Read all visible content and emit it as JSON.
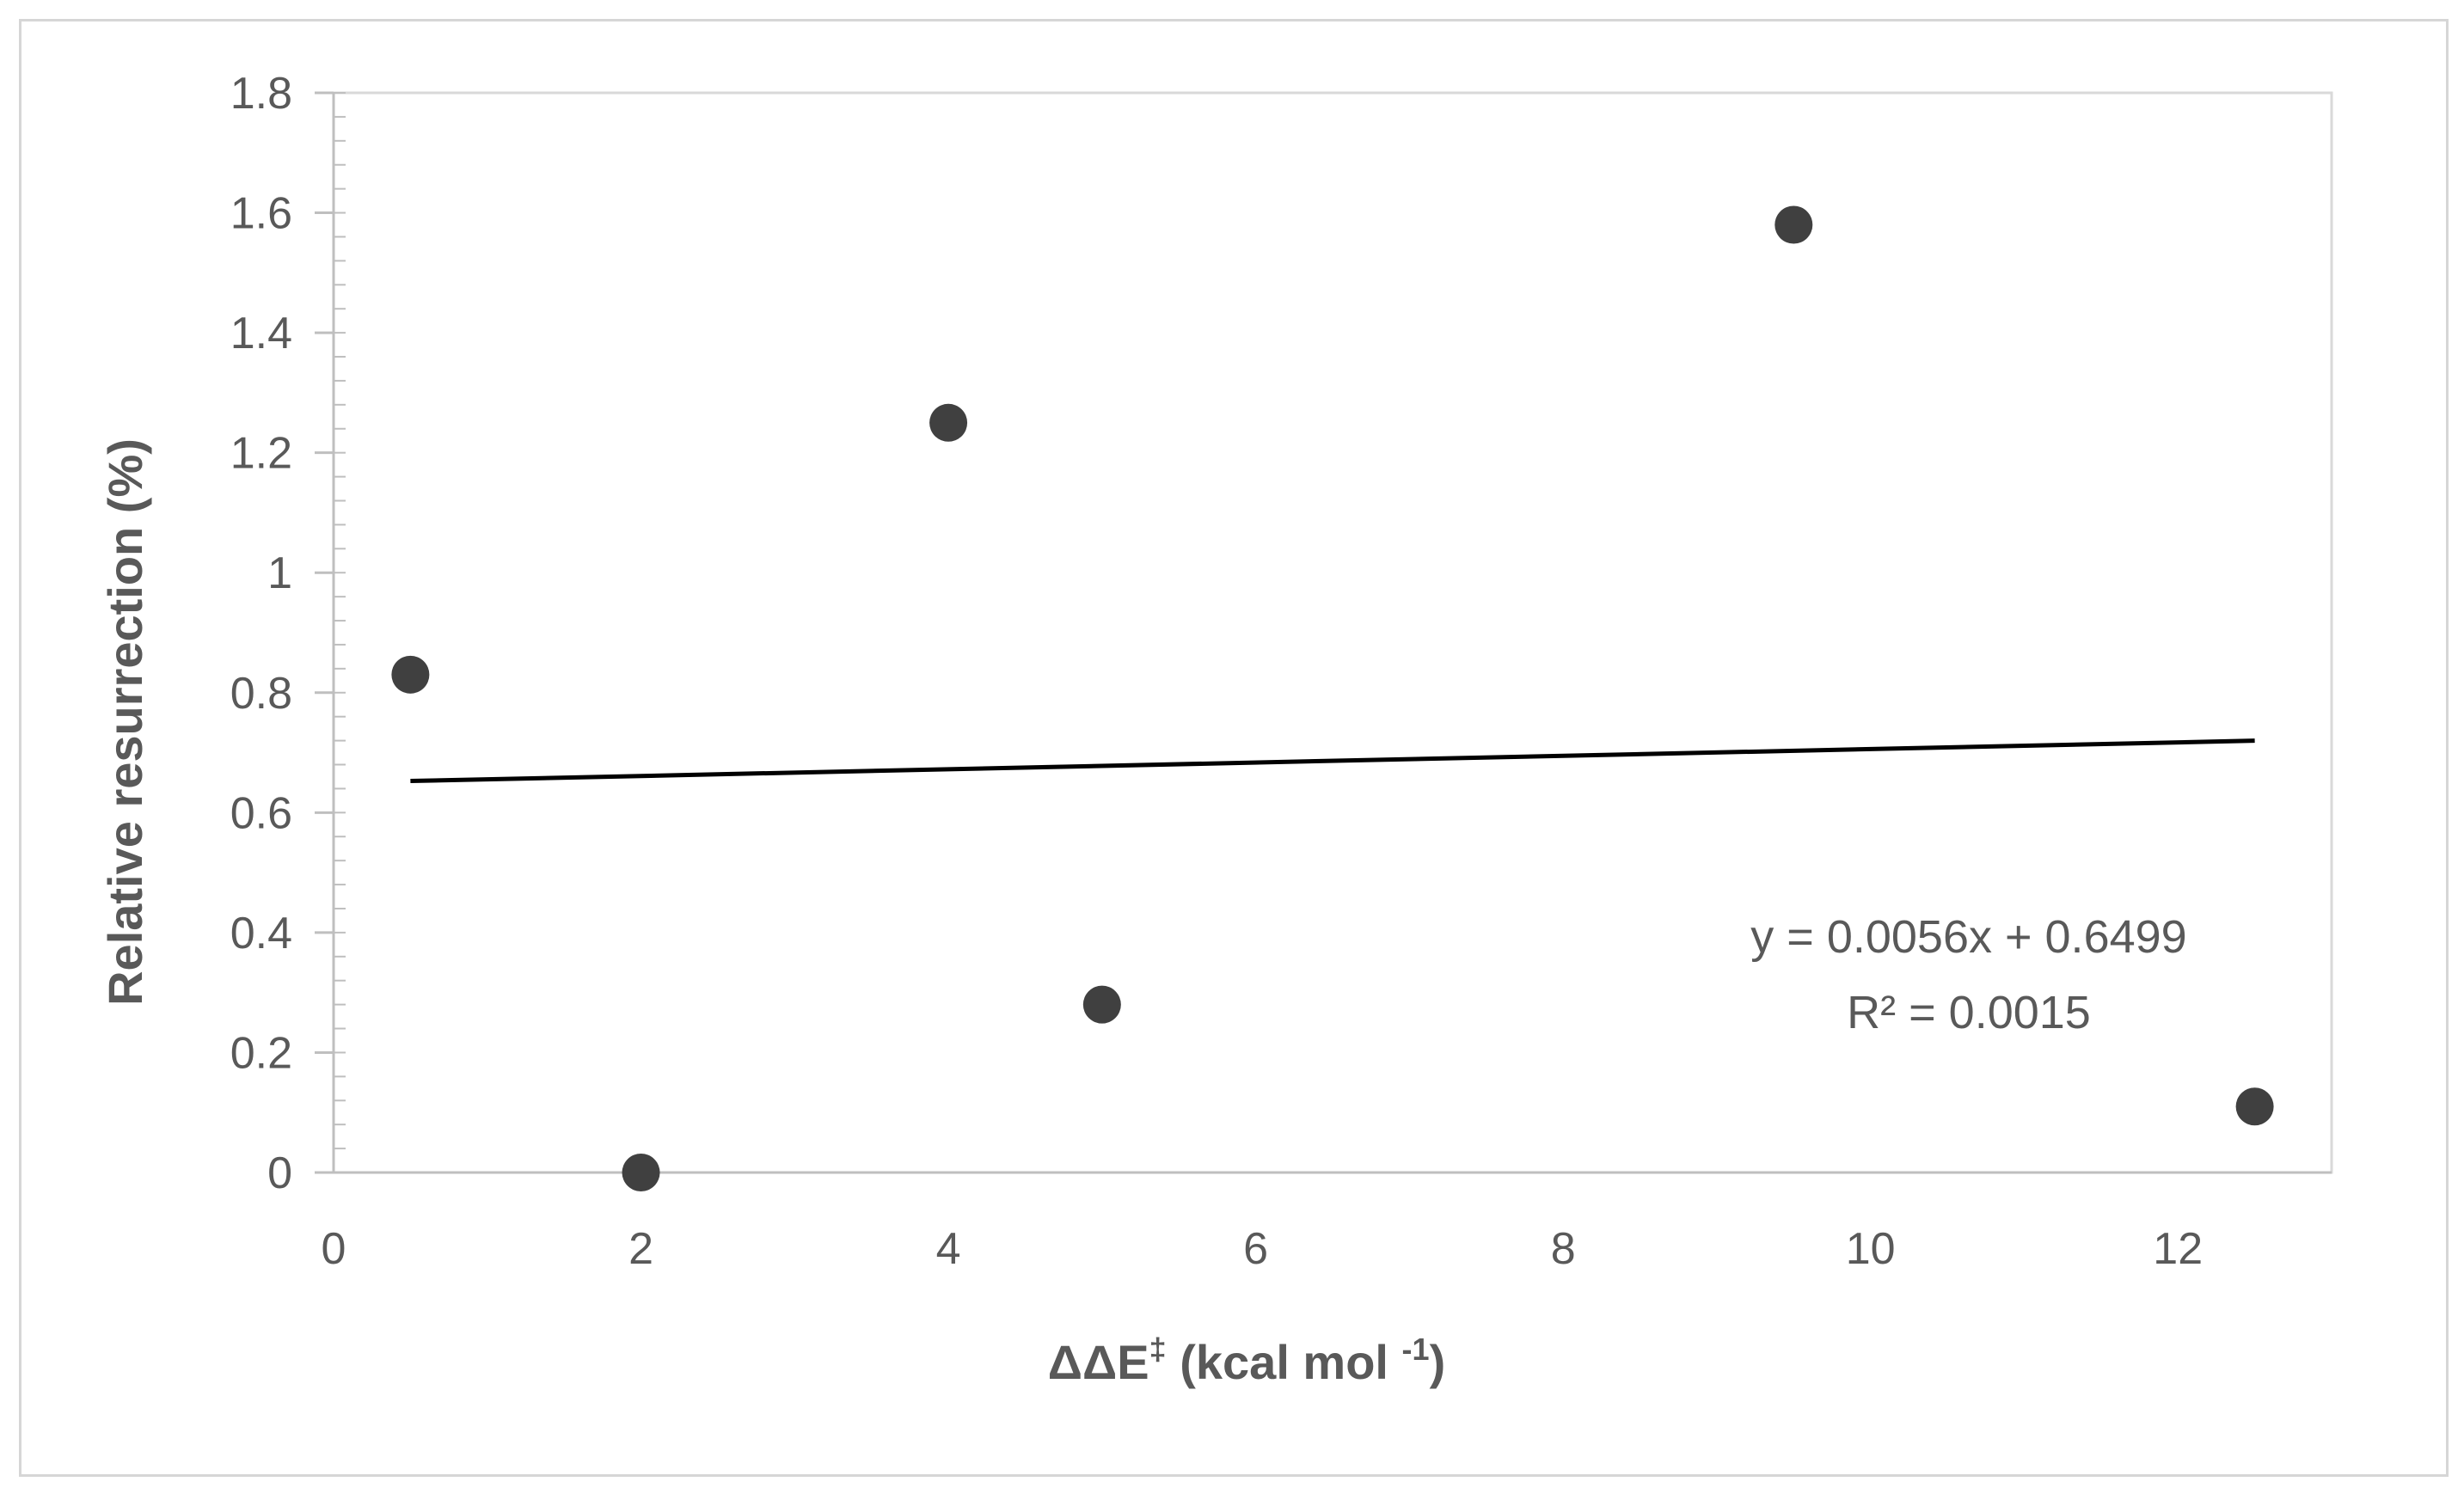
{
  "chart_data": {
    "type": "scatter",
    "xlabel": "ΔΔE",
    "xlabel_sup": "‡",
    "xlabel_unit": " (kcal  mol ",
    "xlabel_unit_sup": "-1",
    "xlabel_unit_close": ")",
    "ylabel": "Relative resurrection (%)",
    "xlim": [
      0,
      13
    ],
    "ylim": [
      0,
      1.8
    ],
    "x_ticks": [
      "0",
      "2",
      "4",
      "6",
      "8",
      "10",
      "12"
    ],
    "y_ticks": [
      "0",
      "0.2",
      "0.4",
      "0.6",
      "0.8",
      "1",
      "1.2",
      "1.4",
      "1.6",
      "1.8"
    ],
    "series": [
      {
        "points": [
          {
            "x": 0.5,
            "y": 0.83
          },
          {
            "x": 2.0,
            "y": 0.0
          },
          {
            "x": 4.0,
            "y": 1.25
          },
          {
            "x": 5.0,
            "y": 0.28
          },
          {
            "x": 9.5,
            "y": 1.58
          },
          {
            "x": 12.5,
            "y": 0.11
          }
        ],
        "color": "#404040"
      }
    ],
    "trendline": {
      "slope": 0.0056,
      "intercept": 0.6499,
      "x_range": [
        0.5,
        12.5
      ],
      "equation": "y = 0.0056x + 0.6499",
      "r_squared": "R² = 0.0015",
      "color": "#000000"
    },
    "grid": false,
    "plot_border_color": "#d9d9d9"
  }
}
